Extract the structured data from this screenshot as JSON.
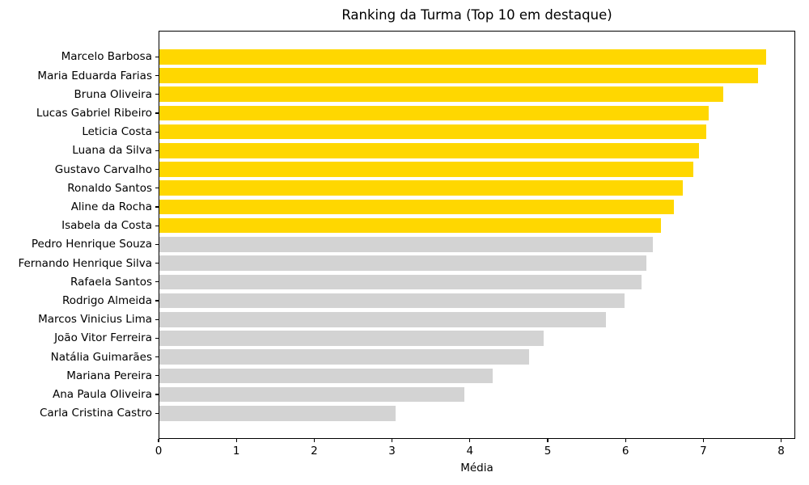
{
  "chart_data": {
    "type": "bar",
    "orientation": "horizontal",
    "title": "Ranking da Turma (Top 10 em destaque)",
    "xlabel": "Média",
    "ylabel": "",
    "xlim": [
      0,
      8.18
    ],
    "xticks": [
      "0",
      "1",
      "2",
      "3",
      "4",
      "5",
      "6",
      "7",
      "8"
    ],
    "grid": false,
    "legend": null,
    "highlight_top_n": 10,
    "colors": {
      "top10": "#FFD700",
      "others": "#D3D3D3"
    },
    "categories": [
      "Marcelo Barbosa",
      "Maria Eduarda Farias",
      "Bruna Oliveira",
      "Lucas Gabriel Ribeiro",
      "Leticia Costa",
      "Luana da Silva",
      "Gustavo Carvalho",
      "Ronaldo Santos",
      "Aline da Rocha",
      "Isabela da Costa",
      "Pedro Henrique Souza",
      "Fernando Henrique Silva",
      "Rafaela Santos",
      "Rodrigo Almeida",
      "Marcos Vinicius Lima",
      "João Vitor Ferreira",
      "Natália Guimarães",
      "Mariana Pereira",
      "Ana Paula Oliveira",
      "Carla Cristina Castro"
    ],
    "values": [
      7.8,
      7.69,
      7.25,
      7.06,
      7.03,
      6.93,
      6.86,
      6.73,
      6.61,
      6.44,
      6.34,
      6.26,
      6.2,
      5.98,
      5.74,
      4.94,
      4.75,
      4.28,
      3.92,
      3.04
    ]
  }
}
